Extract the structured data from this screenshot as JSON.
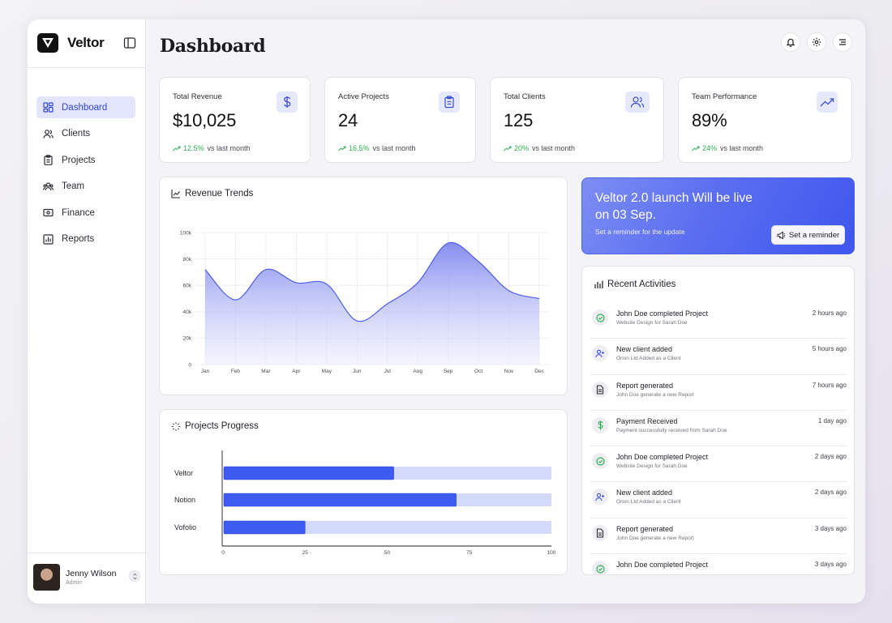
{
  "brand": {
    "name": "Veltor"
  },
  "sidebar": {
    "items": [
      {
        "label": "Dashboard",
        "icon": "grid-icon",
        "active": true
      },
      {
        "label": "Clients",
        "icon": "users-icon",
        "active": false
      },
      {
        "label": "Projects",
        "icon": "clipboard-icon",
        "active": false
      },
      {
        "label": "Team",
        "icon": "team-icon",
        "active": false
      },
      {
        "label": "Finance",
        "icon": "wallet-icon",
        "active": false
      },
      {
        "label": "Reports",
        "icon": "bar-chart-icon",
        "active": false
      }
    ],
    "user": {
      "name": "Jenny Wilson",
      "role": "Admin"
    }
  },
  "header": {
    "title": "Dashboard"
  },
  "stats": [
    {
      "label": "Total Revenue",
      "value": "$10,025",
      "delta": "12.5%",
      "delta_suffix": "vs last month",
      "icon": "dollar-icon"
    },
    {
      "label": "Active Projects",
      "value": "24",
      "delta": "16.5%",
      "delta_suffix": "vs last month",
      "icon": "clipboard-icon"
    },
    {
      "label": "Total Clients",
      "value": "125",
      "delta": "20%",
      "delta_suffix": "vs last month",
      "icon": "users-icon"
    },
    {
      "label": "Team Performance",
      "value": "89%",
      "delta": "24%",
      "delta_suffix": "vs last month",
      "icon": "trending-up-icon"
    }
  ],
  "revenue": {
    "title": "Revenue Trends"
  },
  "progress": {
    "title": "Projects Progress"
  },
  "banner": {
    "title": "Veltor 2.0 launch Will be live on 03 Sep.",
    "subtitle": "Set a reminder for the update",
    "button": "Set a reminder"
  },
  "activities": {
    "title": "Recent Activities",
    "items": [
      {
        "title": "John Doe completed Project",
        "sub": "Website Design for Sarah Doe",
        "time": "2 hours ago",
        "icon": "check-circle-icon"
      },
      {
        "title": "New client added",
        "sub": "Orion Ltd Added as a Client",
        "time": "5 hours ago",
        "icon": "user-plus-icon"
      },
      {
        "title": "Report generated",
        "sub": "John Doe generate a new Report",
        "time": "7 hours ago",
        "icon": "file-icon"
      },
      {
        "title": "Payment Received",
        "sub": "Payment successfully received from Sarah Doe",
        "time": "1 day ago",
        "icon": "dollar-icon"
      },
      {
        "title": "John Doe completed Project",
        "sub": "Website Design for Sarah Doe",
        "time": "2 days ago",
        "icon": "check-circle-icon"
      },
      {
        "title": "New client added",
        "sub": "Orion Ltd Added as a Client",
        "time": "2 days ago",
        "icon": "user-plus-icon"
      },
      {
        "title": "Report generated",
        "sub": "John Doe generate a new Report",
        "time": "3 days ago",
        "icon": "file-icon"
      },
      {
        "title": "John Doe completed Project",
        "sub": "",
        "time": "3 days ago",
        "icon": "check-circle-icon"
      }
    ]
  },
  "colors": {
    "accent": "#2f45d8",
    "bar": "#3d5af1",
    "bar_track": "#d3d9fb",
    "positive": "#2fae57"
  },
  "chart_data": [
    {
      "type": "area",
      "categories": [
        "Jan",
        "Feb",
        "Mar",
        "Apr",
        "May",
        "Jun",
        "Jul",
        "Aug",
        "Sep",
        "Oct",
        "Nov",
        "Dec"
      ],
      "values": [
        72000,
        49000,
        72000,
        62000,
        61000,
        33000,
        46000,
        62000,
        92000,
        78000,
        56000,
        50000
      ],
      "ylim": [
        0,
        100000
      ],
      "yticks": [
        "0",
        "20k",
        "40k",
        "60k",
        "80k",
        "100k"
      ],
      "grid": true
    },
    {
      "type": "bar",
      "orientation": "horizontal",
      "categories": [
        "Veltor",
        "Notion",
        "Vofolio"
      ],
      "values": [
        52,
        71,
        25
      ],
      "xlim": [
        0,
        100
      ],
      "xticks": [
        "0",
        "25",
        "50",
        "75",
        "100"
      ]
    }
  ]
}
